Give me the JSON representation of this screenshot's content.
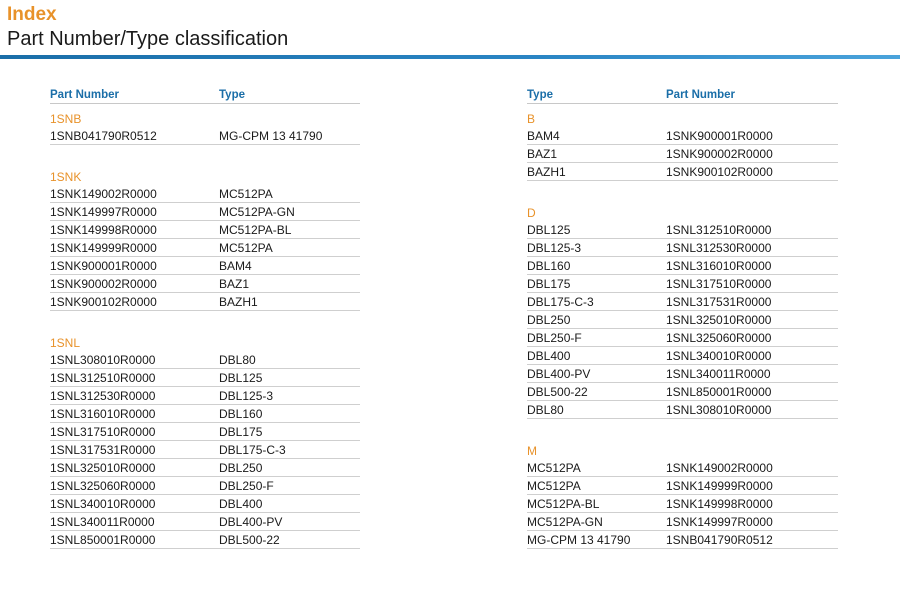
{
  "header": {
    "index_label": "Index",
    "title": "Part Number/Type classification"
  },
  "left": {
    "col1": "Part Number",
    "col2": "Type",
    "groups": [
      {
        "label": "1SNB",
        "rows": [
          [
            "1SNB041790R0512",
            "MG-CPM 13 41790"
          ]
        ]
      },
      {
        "label": "1SNK",
        "rows": [
          [
            "1SNK149002R0000",
            "MC512PA"
          ],
          [
            "1SNK149997R0000",
            "MC512PA-GN"
          ],
          [
            "1SNK149998R0000",
            "MC512PA-BL"
          ],
          [
            "1SNK149999R0000",
            "MC512PA"
          ],
          [
            "1SNK900001R0000",
            "BAM4"
          ],
          [
            "1SNK900002R0000",
            "BAZ1"
          ],
          [
            "1SNK900102R0000",
            "BAZH1"
          ]
        ]
      },
      {
        "label": "1SNL",
        "rows": [
          [
            "1SNL308010R0000",
            "DBL80"
          ],
          [
            "1SNL312510R0000",
            "DBL125"
          ],
          [
            "1SNL312530R0000",
            "DBL125-3"
          ],
          [
            "1SNL316010R0000",
            "DBL160"
          ],
          [
            "1SNL317510R0000",
            "DBL175"
          ],
          [
            "1SNL317531R0000",
            "DBL175-C-3"
          ],
          [
            "1SNL325010R0000",
            "DBL250"
          ],
          [
            "1SNL325060R0000",
            "DBL250-F"
          ],
          [
            "1SNL340010R0000",
            "DBL400"
          ],
          [
            "1SNL340011R0000",
            "DBL400-PV"
          ],
          [
            "1SNL850001R0000",
            "DBL500-22"
          ]
        ]
      }
    ]
  },
  "right": {
    "col1": "Type",
    "col2": "Part Number",
    "groups": [
      {
        "label": "B",
        "rows": [
          [
            "BAM4",
            "1SNK900001R0000"
          ],
          [
            "BAZ1",
            "1SNK900002R0000"
          ],
          [
            "BAZH1",
            "1SNK900102R0000"
          ]
        ]
      },
      {
        "label": "D",
        "rows": [
          [
            "DBL125",
            "1SNL312510R0000"
          ],
          [
            "DBL125-3",
            "1SNL312530R0000"
          ],
          [
            "DBL160",
            "1SNL316010R0000"
          ],
          [
            "DBL175",
            "1SNL317510R0000"
          ],
          [
            "DBL175-C-3",
            "1SNL317531R0000"
          ],
          [
            "DBL250",
            "1SNL325010R0000"
          ],
          [
            "DBL250-F",
            "1SNL325060R0000"
          ],
          [
            "DBL400",
            "1SNL340010R0000"
          ],
          [
            "DBL400-PV",
            "1SNL340011R0000"
          ],
          [
            "DBL500-22",
            "1SNL850001R0000"
          ],
          [
            "DBL80",
            "1SNL308010R0000"
          ]
        ]
      },
      {
        "label": "M",
        "rows": [
          [
            "MC512PA",
            "1SNK149002R0000"
          ],
          [
            "MC512PA",
            "1SNK149999R0000"
          ],
          [
            "MC512PA-BL",
            "1SNK149998R0000"
          ],
          [
            "MC512PA-GN",
            "1SNK149997R0000"
          ],
          [
            "MG-CPM 13 41790",
            "1SNB041790R0512"
          ]
        ]
      }
    ]
  },
  "colors": {
    "accent_orange": "#e8922a",
    "header_blue": "#1a6ea8"
  }
}
